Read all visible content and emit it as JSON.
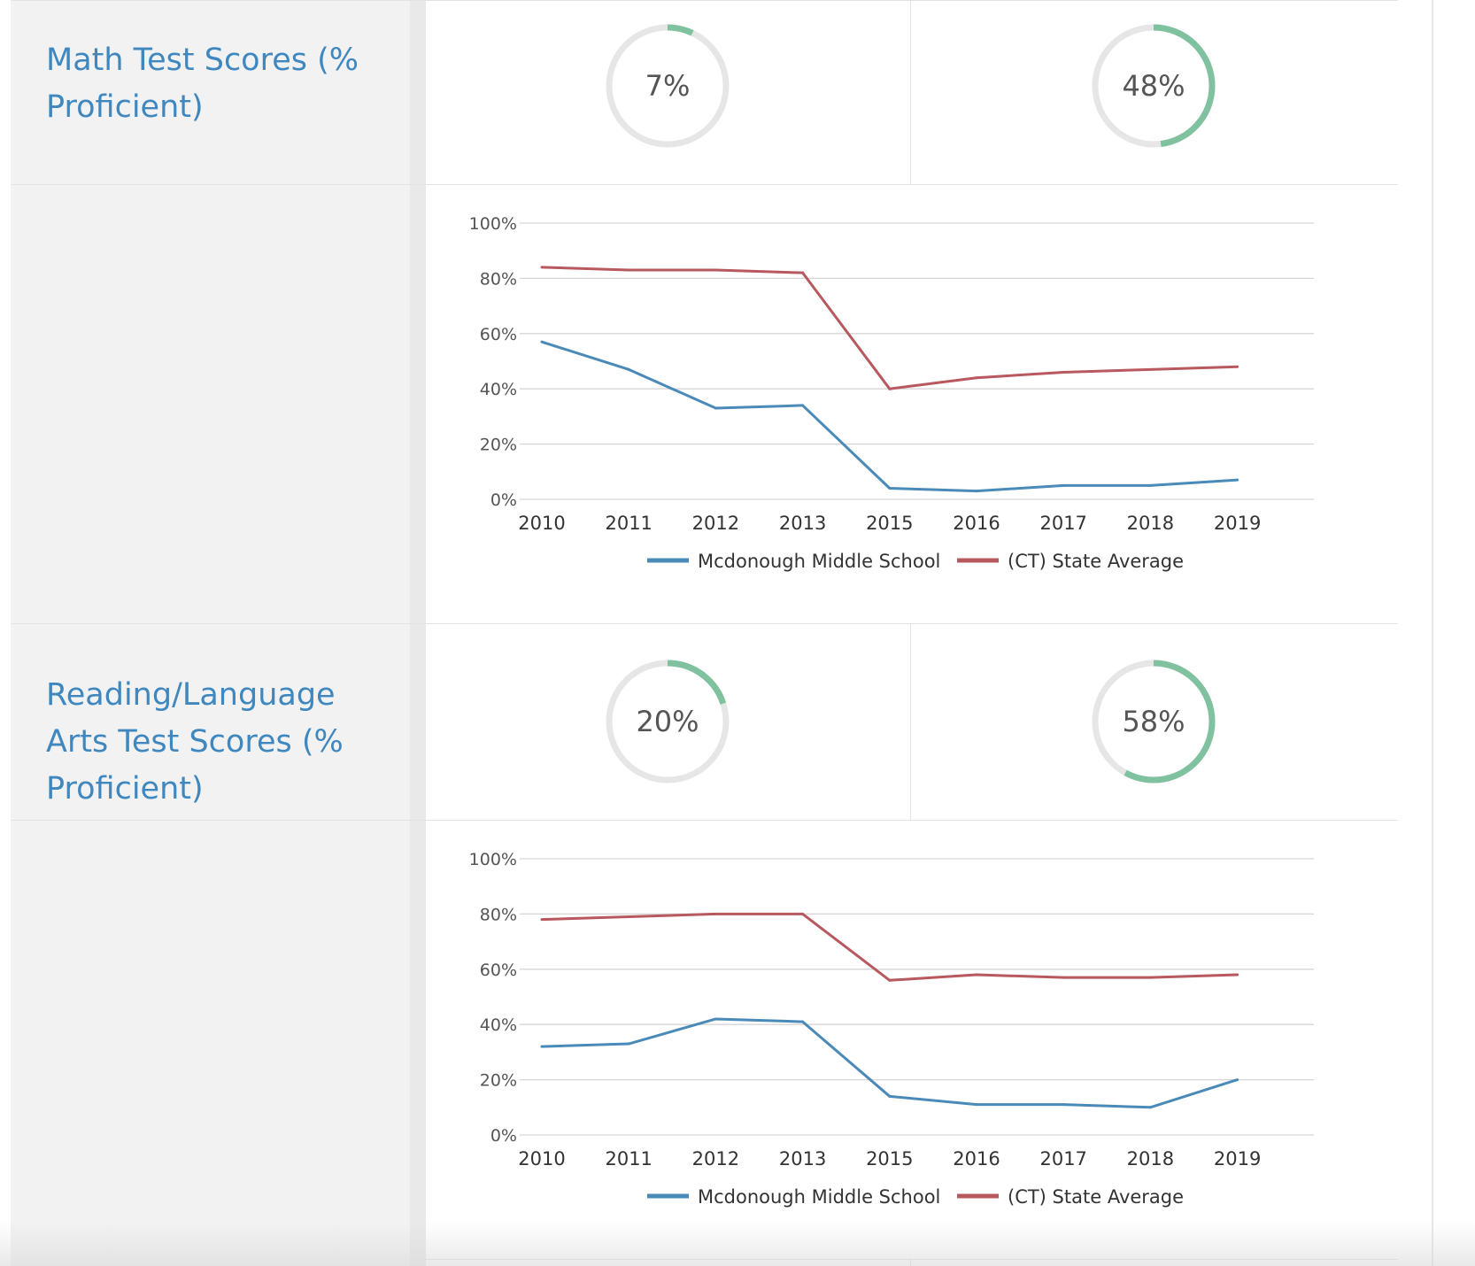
{
  "sections": [
    {
      "title": "Math Test Scores (% Proficient)",
      "school_pct": "7%",
      "school_value": 7,
      "state_pct": "48%",
      "state_value": 48
    },
    {
      "title": "Reading/Language Arts Test Scores (% Proficient)",
      "school_pct": "20%",
      "school_value": 20,
      "state_pct": "58%",
      "state_value": 58
    }
  ],
  "colors": {
    "title": "#3f87bf",
    "donut_track": "#e6e6e6",
    "donut_fill": "#80c29f",
    "school_line": "#4a8ab8",
    "state_line": "#b8585f",
    "grid": "#d6d6d6",
    "tick": "#555555"
  },
  "chart_data": [
    {
      "type": "line",
      "title": "Math Test Scores (% Proficient)",
      "categories": [
        "2010",
        "2011",
        "2012",
        "2013",
        "2015",
        "2016",
        "2017",
        "2018",
        "2019"
      ],
      "series": [
        {
          "name": "Mcdonough Middle School",
          "values": [
            57,
            47,
            33,
            34,
            4,
            3,
            5,
            5,
            7
          ]
        },
        {
          "name": "(CT) State Average",
          "values": [
            84,
            83,
            83,
            82,
            40,
            44,
            46,
            47,
            48
          ]
        }
      ],
      "ylim": [
        0,
        100
      ],
      "yticks": [
        "0%",
        "20%",
        "40%",
        "60%",
        "80%",
        "100%"
      ],
      "grid": true,
      "legend": "bottom"
    },
    {
      "type": "line",
      "title": "Reading/Language Arts Test Scores (% Proficient)",
      "categories": [
        "2010",
        "2011",
        "2012",
        "2013",
        "2015",
        "2016",
        "2017",
        "2018",
        "2019"
      ],
      "series": [
        {
          "name": "Mcdonough Middle School",
          "values": [
            32,
            33,
            42,
            41,
            14,
            11,
            11,
            10,
            20
          ]
        },
        {
          "name": "(CT) State Average",
          "values": [
            78,
            79,
            80,
            80,
            56,
            58,
            57,
            57,
            58
          ]
        }
      ],
      "ylim": [
        0,
        100
      ],
      "yticks": [
        "0%",
        "20%",
        "40%",
        "60%",
        "80%",
        "100%"
      ],
      "grid": true,
      "legend": "bottom"
    }
  ]
}
